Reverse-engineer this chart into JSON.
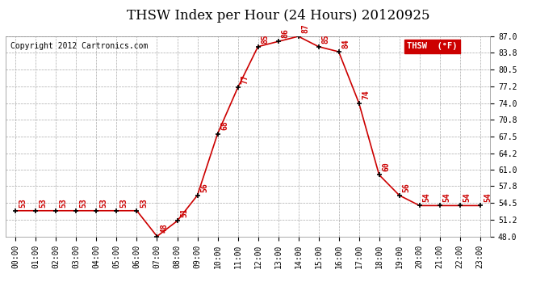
{
  "title": "THSW Index per Hour (24 Hours) 20120925",
  "copyright": "Copyright 2012 Cartronics.com",
  "legend_label": "THSW  (°F)",
  "hours": [
    0,
    1,
    2,
    3,
    4,
    5,
    6,
    7,
    8,
    9,
    10,
    11,
    12,
    13,
    14,
    15,
    16,
    17,
    18,
    19,
    20,
    21,
    22,
    23
  ],
  "values": [
    53,
    53,
    53,
    53,
    53,
    53,
    53,
    48,
    51,
    56,
    68,
    77,
    85,
    86,
    87,
    85,
    84,
    74,
    60,
    56,
    54,
    54,
    54,
    54
  ],
  "ylim": [
    48.0,
    87.0
  ],
  "yticks": [
    48.0,
    51.2,
    54.5,
    57.8,
    61.0,
    64.2,
    67.5,
    70.8,
    74.0,
    77.2,
    80.5,
    83.8,
    87.0
  ],
  "line_color": "#cc0000",
  "background_color": "#ffffff",
  "grid_color": "#aaaaaa",
  "title_fontsize": 12,
  "tick_fontsize": 7,
  "annotation_fontsize": 7,
  "copyright_fontsize": 7,
  "legend_fontsize": 7.5
}
